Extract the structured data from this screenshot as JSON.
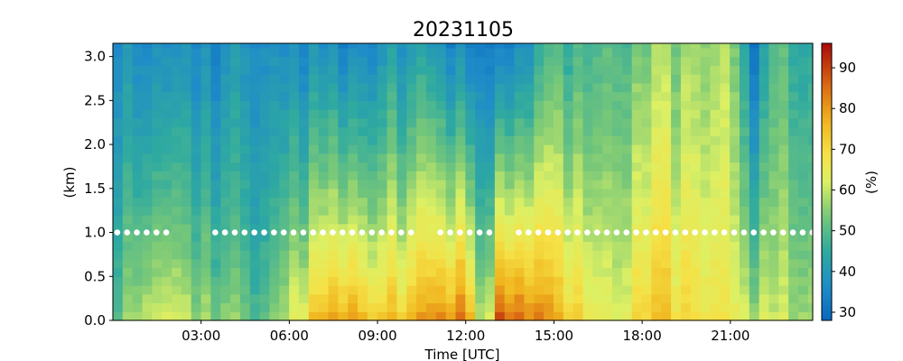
{
  "chart_data": {
    "type": "heatmap",
    "title": "20231105",
    "xlabel": "Time [UTC]",
    "ylabel": "(km)",
    "colorbar_label": "(%)",
    "x_range_hours": [
      0,
      23.8
    ],
    "ylim": [
      0,
      3.15
    ],
    "clim": [
      28,
      96
    ],
    "colormap": "RdYlBu_r",
    "x_ticks": [
      "03:00",
      "06:00",
      "09:00",
      "12:00",
      "15:00",
      "18:00",
      "21:00"
    ],
    "x_tick_hours": [
      3,
      6,
      9,
      12,
      15,
      18,
      21
    ],
    "y_ticks": [
      "0.0",
      "0.5",
      "1.0",
      "1.5",
      "2.0",
      "2.5",
      "3.0"
    ],
    "y_tick_values": [
      0,
      0.5,
      1.0,
      1.5,
      2.0,
      2.5,
      3.0
    ],
    "colorbar_ticks": [
      "30",
      "40",
      "50",
      "60",
      "70",
      "80",
      "90"
    ],
    "colorbar_tick_values": [
      30,
      40,
      50,
      60,
      70,
      80,
      90
    ],
    "time_step_hours": 0.333,
    "height_levels_km": [
      0.0,
      0.1,
      0.2,
      0.3,
      0.4,
      0.5,
      0.6,
      0.7,
      0.8,
      0.9,
      1.0,
      1.1,
      1.2,
      1.3,
      1.4,
      1.5,
      1.6,
      1.7,
      1.8,
      1.9,
      2.0,
      2.1,
      2.2,
      2.3,
      2.4,
      2.5,
      2.6,
      2.7,
      2.8,
      2.9,
      3.0,
      3.1
    ],
    "humidity_profile_keypoints": [
      {
        "hour": 0.0,
        "surface": 48,
        "top": 36
      },
      {
        "hour": 1.0,
        "surface": 60,
        "top": 36
      },
      {
        "hour": 2.0,
        "surface": 62,
        "top": 37
      },
      {
        "hour": 3.0,
        "surface": 56,
        "top": 36
      },
      {
        "hour": 4.0,
        "surface": 55,
        "top": 38
      },
      {
        "hour": 5.0,
        "surface": 52,
        "top": 40
      },
      {
        "hour": 6.0,
        "surface": 60,
        "top": 36
      },
      {
        "hour": 7.0,
        "surface": 76,
        "top": 38
      },
      {
        "hour": 8.0,
        "surface": 78,
        "top": 33
      },
      {
        "hour": 9.0,
        "surface": 72,
        "top": 37
      },
      {
        "hour": 10.0,
        "surface": 74,
        "top": 40
      },
      {
        "hour": 11.0,
        "surface": 80,
        "top": 38
      },
      {
        "hour": 12.0,
        "surface": 84,
        "top": 34
      },
      {
        "hour": 12.7,
        "surface": 50,
        "top": 36
      },
      {
        "hour": 13.0,
        "surface": 88,
        "top": 32
      },
      {
        "hour": 14.0,
        "surface": 86,
        "top": 38
      },
      {
        "hour": 15.0,
        "surface": 80,
        "top": 50
      },
      {
        "hour": 16.0,
        "surface": 66,
        "top": 44
      },
      {
        "hour": 17.0,
        "surface": 62,
        "top": 50
      },
      {
        "hour": 18.0,
        "surface": 74,
        "top": 55
      },
      {
        "hour": 19.0,
        "surface": 72,
        "top": 56
      },
      {
        "hour": 20.0,
        "surface": 66,
        "top": 54
      },
      {
        "hour": 21.0,
        "surface": 64,
        "top": 56
      },
      {
        "hour": 21.9,
        "surface": 60,
        "top": 32
      },
      {
        "hour": 22.5,
        "surface": 58,
        "top": 48
      },
      {
        "hour": 23.8,
        "surface": 60,
        "top": 46
      }
    ],
    "cloud_base_marker": {
      "height_km": 1.0,
      "color": "#ffffff",
      "gaps_hours": [
        [
          2.0,
          3.2
        ],
        [
          10.2,
          10.9
        ],
        [
          13.1,
          13.8
        ]
      ]
    }
  }
}
